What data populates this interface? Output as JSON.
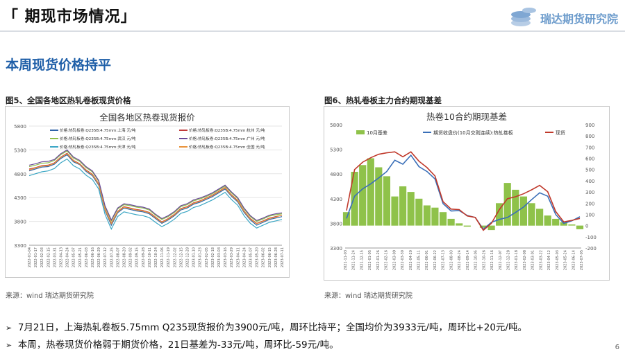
{
  "header": {
    "title": "「 期现市场情况」",
    "logo_text": "瑞达期货研究院"
  },
  "subtitle": "本周现货价格持平",
  "chart_data": [
    {
      "type": "line",
      "caption": "图5、全国各地区热轧卷板现货价格",
      "title": "全国各地区热卷现货报价",
      "source": "来源：wind   瑞达期货研究院",
      "ylim": [
        3300,
        5800
      ],
      "yticks": [
        "5800",
        "5300",
        "4800",
        "4300",
        "3800",
        "3300"
      ],
      "x_labels": [
        "2022-01-04",
        "2022-01-17",
        "2022-02-03",
        "2022-02-15",
        "2022-03-31",
        "2022-04-13",
        "2022-04-24",
        "2022-05-07",
        "2022-05-21",
        "2022-06-03",
        "2022-06-16",
        "2022-06-29",
        "2022-07-12",
        "2022-07-25",
        "2022-08-07",
        "2022-08-20",
        "2022-09-02",
        "2022-09-15",
        "2022-09-28",
        "2022-10-11",
        "2022-10-24",
        "2022-11-06",
        "2022-11-19",
        "2022-12-02",
        "2022-12-15",
        "2022-12-28",
        "2023-01-10",
        "2023-01-23",
        "2023-02-05",
        "2023-02-18",
        "2023-03-03",
        "2023-03-16",
        "2023-03-29",
        "2023-04-11",
        "2023-04-24",
        "2023-05-07",
        "2023-05-20",
        "2023-06-02",
        "2023-06-15",
        "2023-06-28",
        "2023-07-11"
      ],
      "series": [
        {
          "name": "价格:热轧板卷:Q235B:4.75mm:上海 元/吨",
          "color": "#2f63a8",
          "values": [
            4860,
            4900,
            4940,
            4950,
            5000,
            5120,
            5200,
            5050,
            4990,
            4850,
            4760,
            4560,
            4030,
            3720,
            3980,
            4080,
            4050,
            4020,
            4000,
            3960,
            3860,
            3760,
            3830,
            3920,
            4040,
            4080,
            4160,
            4200,
            4260,
            4320,
            4400,
            4480,
            4330,
            4210,
            3990,
            3830,
            3720,
            3780,
            3840,
            3870,
            3900
          ]
        },
        {
          "name": "价格:热轧板卷:Q235B:4.75mm:杭州 元/吨",
          "color": "#c03a3a",
          "values": [
            4900,
            4930,
            4970,
            4980,
            5030,
            5150,
            5230,
            5080,
            5010,
            4880,
            4790,
            4590,
            4060,
            3760,
            4010,
            4110,
            4080,
            4050,
            4030,
            3990,
            3890,
            3790,
            3860,
            3950,
            4070,
            4110,
            4190,
            4230,
            4290,
            4350,
            4430,
            4510,
            4360,
            4240,
            4020,
            3860,
            3760,
            3810,
            3870,
            3900,
            3930
          ]
        },
        {
          "name": "价格:热轧板卷:Q235B:4.75mm:武汉 元/吨",
          "color": "#8fbf4a",
          "values": [
            4950,
            4980,
            5020,
            5030,
            5080,
            5200,
            5280,
            5130,
            5060,
            4930,
            4840,
            4640,
            4110,
            3810,
            4060,
            4150,
            4130,
            4100,
            4080,
            4040,
            3930,
            3840,
            3900,
            3990,
            4110,
            4150,
            4230,
            4270,
            4320,
            4380,
            4460,
            4540,
            4400,
            4280,
            4060,
            3900,
            3800,
            3850,
            3910,
            3940,
            3960
          ]
        },
        {
          "name": "价格:热轧板卷:Q235B:4.75mm:广州 元/吨",
          "color": "#6a4a9a",
          "values": [
            4980,
            5010,
            5050,
            5060,
            5100,
            5220,
            5300,
            5150,
            5080,
            4950,
            4860,
            4660,
            4130,
            3830,
            4080,
            4170,
            4150,
            4120,
            4100,
            4060,
            3950,
            3860,
            3920,
            4010,
            4130,
            4170,
            4250,
            4290,
            4340,
            4400,
            4480,
            4560,
            4420,
            4300,
            4080,
            3920,
            3820,
            3870,
            3930,
            3960,
            3980
          ]
        },
        {
          "name": "价格:热轧板卷:Q235B:4.75mm:天津 元/吨",
          "color": "#3aa6c4",
          "values": [
            4760,
            4800,
            4840,
            4860,
            4910,
            5030,
            5110,
            4970,
            4900,
            4770,
            4680,
            4480,
            3950,
            3640,
            3900,
            4000,
            3970,
            3940,
            3920,
            3880,
            3780,
            3690,
            3760,
            3850,
            3970,
            4010,
            4090,
            4130,
            4190,
            4250,
            4330,
            4410,
            4260,
            4140,
            3920,
            3760,
            3660,
            3720,
            3780,
            3810,
            3840
          ]
        },
        {
          "name": "价格:热轧板卷:Q235B:4.75mm:全国 元/吨",
          "color": "#e8923a",
          "values": [
            4880,
            4920,
            4960,
            4970,
            5020,
            5140,
            5220,
            5070,
            5000,
            4870,
            4780,
            4580,
            4050,
            3750,
            4000,
            4100,
            4070,
            4040,
            4020,
            3980,
            3880,
            3780,
            3850,
            3940,
            4060,
            4100,
            4180,
            4220,
            4280,
            4340,
            4420,
            4500,
            4350,
            4230,
            4010,
            3850,
            3750,
            3800,
            3860,
            3890,
            3933
          ]
        }
      ]
    },
    {
      "type": "line",
      "caption": "图6、热轧卷板主力合约期现基差",
      "title": "热卷10合约期现基差",
      "source": "来源：wind   瑞达期货研究院",
      "ylim_left": [
        3300,
        5800
      ],
      "yticks_left": [
        "5800",
        "5300",
        "4800",
        "4300",
        "3800",
        "3300"
      ],
      "ylim_right": [
        -200,
        900
      ],
      "yticks_right": [
        "900",
        "800",
        "700",
        "600",
        "500",
        "400",
        "300",
        "200",
        "100",
        "0",
        "-100",
        "-200"
      ],
      "x_labels": [
        "2021-11-03",
        "2021-11-24",
        "2021-12-15",
        "2022-01-05",
        "2022-01-26",
        "2022-02-16",
        "2022-03-09",
        "2022-03-30",
        "2022-04-20",
        "2022-05-11",
        "2022-06-01",
        "2022-06-22",
        "2022-07-13",
        "2022-08-03",
        "2022-08-24",
        "2022-09-14",
        "2022-10-05",
        "2022-10-26",
        "2022-11-16",
        "2022-12-07",
        "2022-12-28",
        "2023-01-18",
        "2023-02-08",
        "2023-03-01",
        "2023-03-22",
        "2023-04-12",
        "2023-05-03",
        "2023-05-24",
        "2023-06-14",
        "2023-07-05"
      ],
      "series": [
        {
          "name": "10月基差",
          "axis": "right",
          "color": "#8fc24a",
          "values": [
            120,
            480,
            540,
            600,
            520,
            440,
            260,
            350,
            300,
            240,
            180,
            160,
            120,
            60,
            20,
            -10,
            0,
            -20,
            -40,
            200,
            380,
            320,
            260,
            200,
            150,
            90,
            60,
            30,
            10,
            -33
          ]
        },
        {
          "name": "期货收盘价(10月交割连续):热轧卷板",
          "axis": "left",
          "color": "#3a6fb8",
          "values": [
            3900,
            4350,
            4500,
            4600,
            4720,
            4850,
            5080,
            5000,
            5180,
            4950,
            4850,
            4700,
            4200,
            4050,
            4060,
            3960,
            3920,
            3680,
            3820,
            3880,
            3920,
            4020,
            4130,
            4280,
            4420,
            4350,
            3980,
            3800,
            3850,
            3933
          ]
        },
        {
          "name": "现货",
          "axis": "left",
          "color": "#c0392b",
          "values": [
            4060,
            4890,
            5040,
            5130,
            5200,
            5230,
            5250,
            5150,
            5250,
            5060,
            4930,
            4760,
            4240,
            4090,
            4080,
            3950,
            3920,
            3660,
            3800,
            4080,
            4300,
            4340,
            4400,
            4480,
            4570,
            4440,
            4040,
            3830,
            3860,
            3900
          ]
        }
      ]
    }
  ],
  "bullets": [
    "7月21日，上海热轧卷板5.75mm Q235现货报价为3900元/吨，周环比持平；全国均价为3933元/吨，周环比+20元/吨。",
    "本周，热卷现货价格弱于期货价格，21日基差为-33元/吨，周环比-59元/吨。"
  ],
  "page_number": "6"
}
